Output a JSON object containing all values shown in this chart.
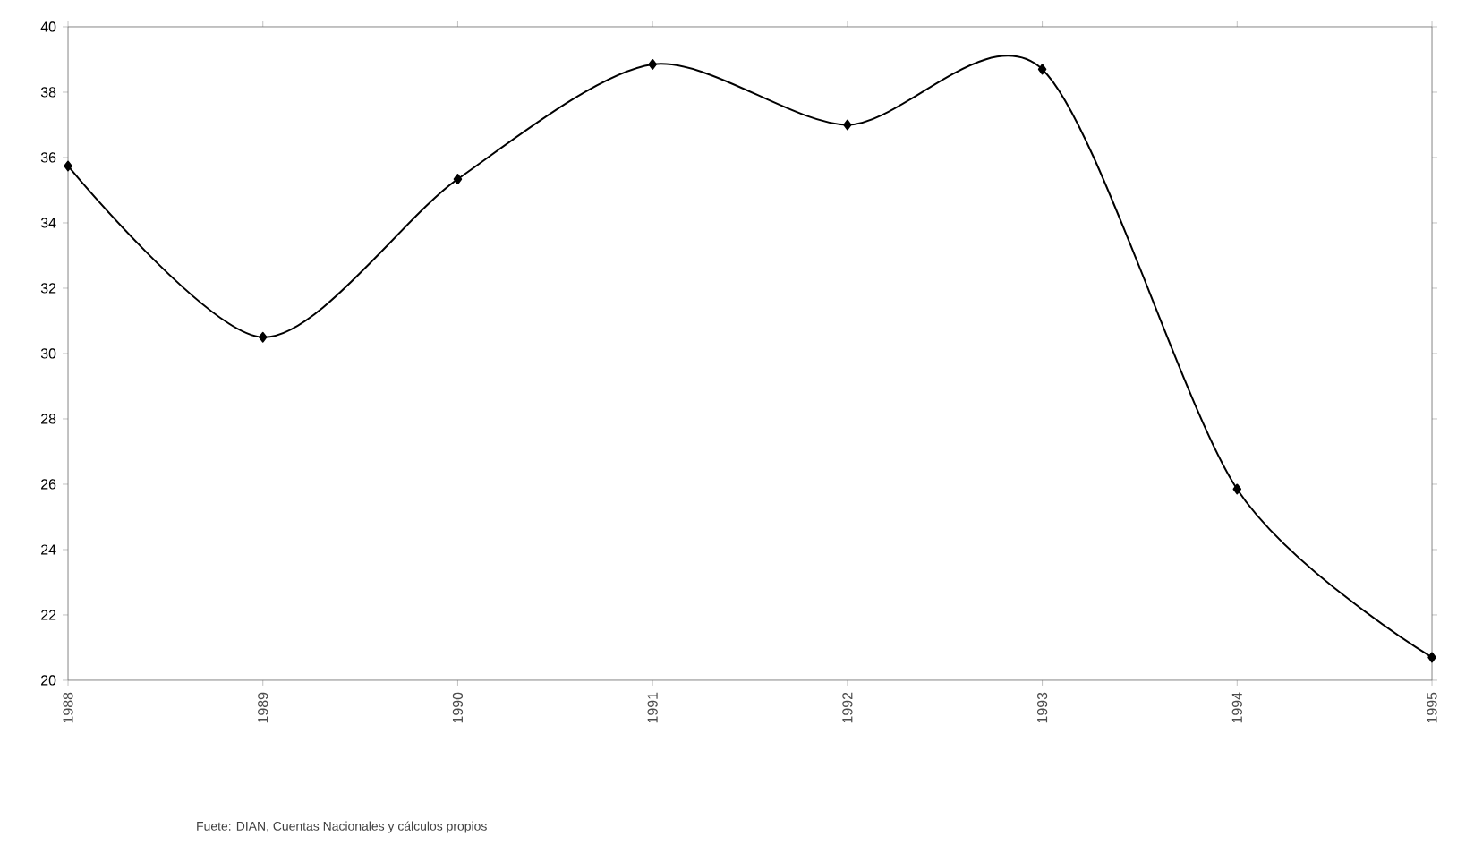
{
  "chart_data": {
    "type": "line",
    "categories": [
      "1988",
      "1989",
      "1990",
      "1991",
      "1992",
      "1993",
      "1994",
      "1995"
    ],
    "series": [
      {
        "color": "#000000",
        "values": [
          35.74,
          30.5,
          35.34,
          38.85,
          37.0,
          38.7,
          25.85,
          20.7
        ]
      }
    ],
    "ylim": [
      20,
      40
    ],
    "yticks": [
      20,
      22,
      24,
      26,
      28,
      30,
      32,
      34,
      36,
      38,
      40
    ],
    "marker": "diamond",
    "line_style": "solid",
    "annotations": [
      "Fuete:  DIAN, Cuentas Nacionales y cálculos propios"
    ]
  }
}
